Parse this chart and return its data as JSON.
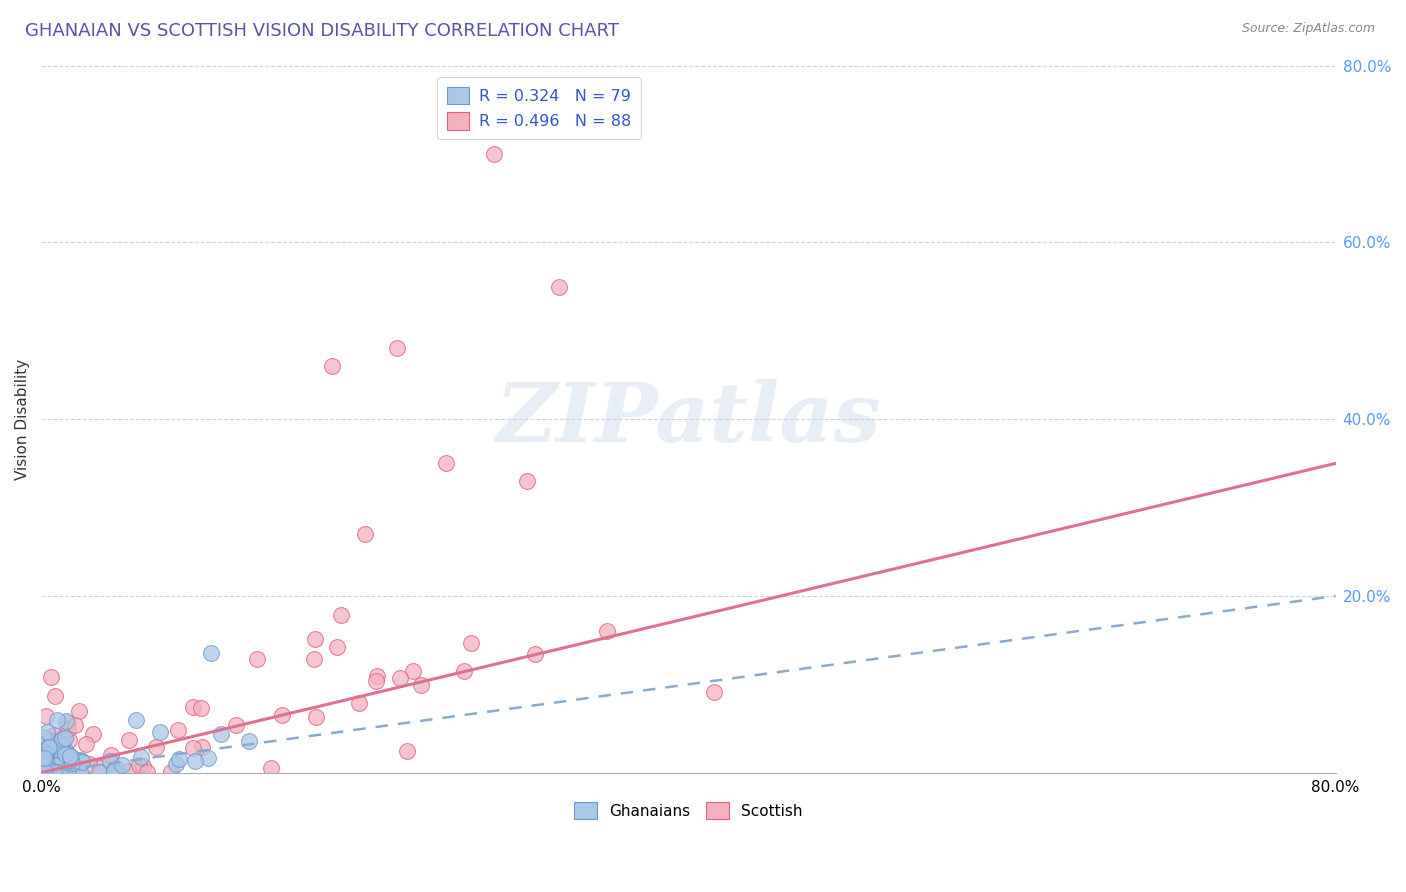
{
  "title": "GHANAIAN VS SCOTTISH VISION DISABILITY CORRELATION CHART",
  "source": "Source: ZipAtlas.com",
  "ylabel": "Vision Disability",
  "xlim": [
    0,
    0.8
  ],
  "ylim": [
    0,
    0.8
  ],
  "ytick_labels": [
    "20.0%",
    "40.0%",
    "60.0%",
    "80.0%"
  ],
  "ytick_values": [
    0.2,
    0.4,
    0.6,
    0.8
  ],
  "ghanaian_R": 0.324,
  "ghanaian_N": 79,
  "scottish_R": 0.496,
  "scottish_N": 88,
  "ghanaian_color": "#a8c8e8",
  "scottish_color": "#f5b0c0",
  "ghanaian_edge_color": "#6699cc",
  "scottish_edge_color": "#e06080",
  "ghanaian_line_color": "#88aacc",
  "scottish_line_color": "#e07090",
  "title_color": "#5555aa",
  "legend_text_color": "#3355cc",
  "background_color": "#ffffff",
  "grid_color": "#c8d4e4",
  "watermark": "ZIPatlas",
  "sc_trend_slope": 0.4375,
  "sc_trend_intercept": 0.0,
  "gh_trend_slope": 0.25,
  "gh_trend_intercept": 0.0
}
